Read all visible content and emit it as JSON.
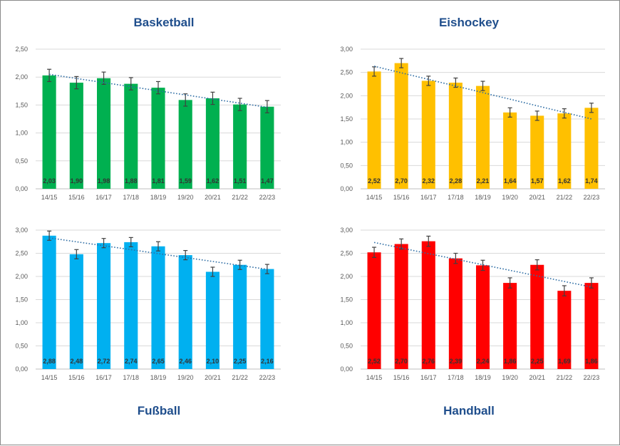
{
  "chart_data": [
    {
      "type": "bar",
      "title": "Basketball",
      "color": "#00b050",
      "categories": [
        "14/15",
        "15/16",
        "16/17",
        "17/18",
        "18/19",
        "19/20",
        "20/21",
        "21/22",
        "22/23"
      ],
      "values": [
        2.03,
        1.9,
        1.98,
        1.88,
        1.81,
        1.59,
        1.62,
        1.51,
        1.47
      ],
      "labels": [
        "2,03",
        "1,90",
        "1,98",
        "1,88",
        "1,81",
        "1,59",
        "1,62",
        "1,51",
        "1,47"
      ],
      "error": 0.11,
      "trendline": "linear",
      "ylim": [
        0,
        2.5
      ],
      "yticks": [
        "0,00",
        "0,50",
        "1,00",
        "1,50",
        "2,00",
        "2,50"
      ],
      "grid": true
    },
    {
      "type": "bar",
      "title": "Eishockey",
      "color": "#ffc000",
      "categories": [
        "14/15",
        "15/16",
        "16/17",
        "17/18",
        "18/19",
        "19/20",
        "20/21",
        "21/22",
        "22/23"
      ],
      "values": [
        2.52,
        2.7,
        2.32,
        2.28,
        2.21,
        1.64,
        1.57,
        1.62,
        1.74
      ],
      "labels": [
        "2,52",
        "2,70",
        "2,32",
        "2,28",
        "2,21",
        "1,64",
        "1,57",
        "1,62",
        "1,74"
      ],
      "error": 0.1,
      "trendline": "linear",
      "ylim": [
        0,
        3.0
      ],
      "yticks": [
        "0,00",
        "0,50",
        "1,00",
        "1,50",
        "2,00",
        "2,50",
        "3,00"
      ],
      "grid": true
    },
    {
      "type": "bar",
      "title": "Fußball",
      "color": "#00b0f0",
      "categories": [
        "14/15",
        "15/16",
        "16/17",
        "17/18",
        "18/19",
        "19/20",
        "20/21",
        "21/22",
        "22/23"
      ],
      "values": [
        2.88,
        2.48,
        2.72,
        2.74,
        2.65,
        2.46,
        2.1,
        2.25,
        2.16
      ],
      "labels": [
        "2,88",
        "2,48",
        "2,72",
        "2,74",
        "2,65",
        "2,46",
        "2,10",
        "2,25",
        "2,16"
      ],
      "error": 0.1,
      "trendline": "linear",
      "ylim": [
        0,
        3.0
      ],
      "yticks": [
        "0,00",
        "0,50",
        "1,00",
        "1,50",
        "2,00",
        "2,50",
        "3,00"
      ],
      "grid": true
    },
    {
      "type": "bar",
      "title": "Handball",
      "color": "#ff0000",
      "categories": [
        "14/15",
        "15/16",
        "16/17",
        "17/18",
        "18/19",
        "19/20",
        "20/21",
        "21/22",
        "22/23"
      ],
      "values": [
        2.52,
        2.7,
        2.76,
        2.39,
        2.24,
        1.86,
        2.25,
        1.69,
        1.86
      ],
      "labels": [
        "2,52",
        "2,70",
        "2,76",
        "2,39",
        "2,24",
        "1,86",
        "2,25",
        "1,69",
        "1,86"
      ],
      "error": 0.11,
      "trendline": "linear",
      "ylim": [
        0,
        3.0
      ],
      "yticks": [
        "0,00",
        "0,50",
        "1,00",
        "1,50",
        "2,00",
        "2,50",
        "3,00"
      ],
      "grid": true
    }
  ]
}
